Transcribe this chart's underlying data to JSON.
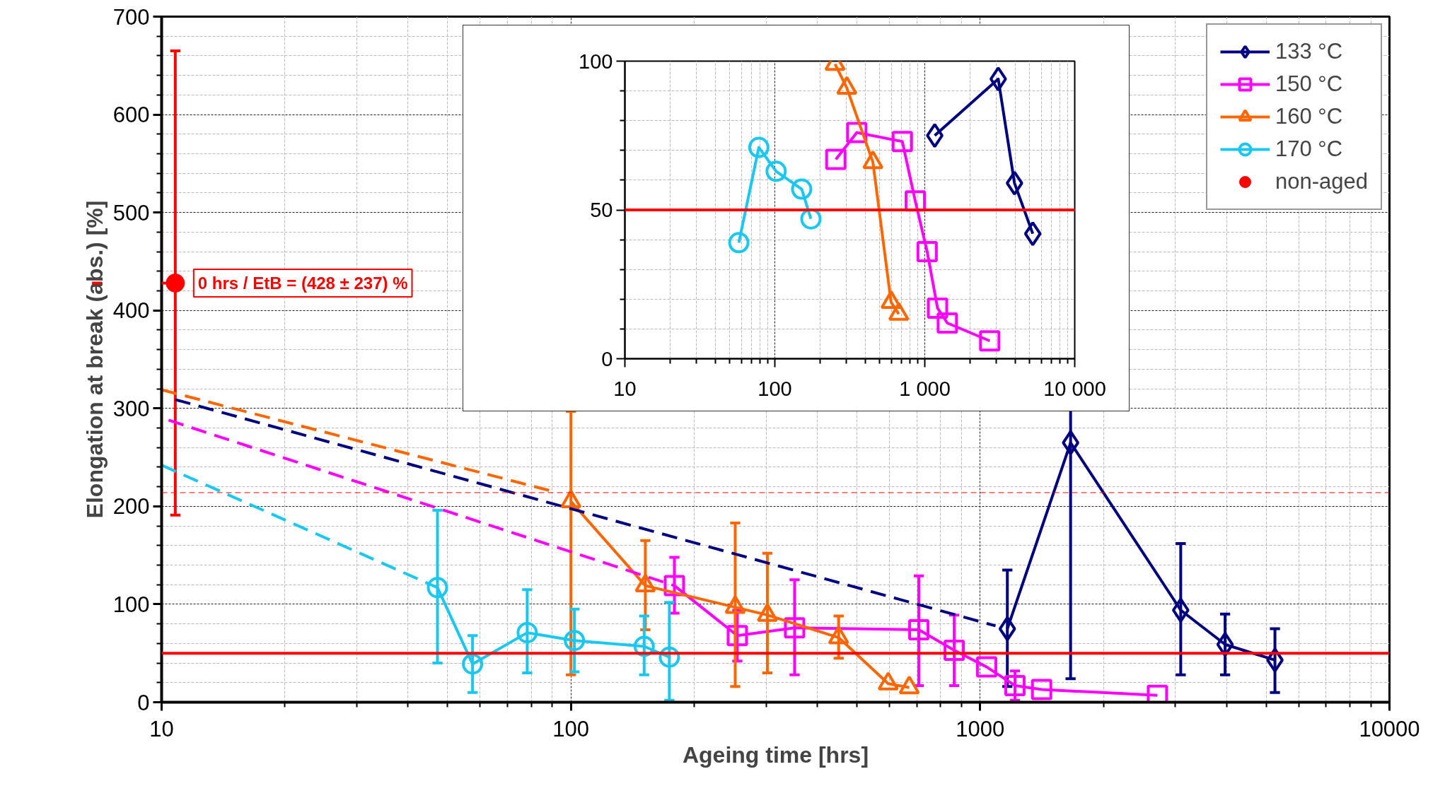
{
  "chart_data": [
    {
      "type": "line",
      "xlabel": "Ageing time [hrs]",
      "ylabel": "Elongation at break (abs.) [%]",
      "log": "x",
      "xlim": [
        10,
        10000
      ],
      "xticks": [
        10,
        100,
        1000,
        10000
      ],
      "ylim": [
        0,
        700
      ],
      "yticks": [
        0,
        100,
        200,
        300,
        400,
        500,
        600,
        700
      ],
      "grid": true,
      "legend": "top right",
      "series": [
        {
          "name": "133 °C",
          "color": "#000080",
          "marker": "diamond",
          "x": [
            1165,
            1663,
            3090,
            3966,
            5250
          ],
          "values": [
            75,
            265,
            94,
            59,
            43
          ],
          "errors": [
            [
              16,
              135
            ],
            [
              24,
              506
            ],
            [
              28,
              162
            ],
            [
              28,
              90
            ],
            [
              10,
              75
            ]
          ]
        },
        {
          "name": "150 °C",
          "color": "#ff00ff",
          "marker": "square",
          "x": [
            179,
            255,
            352,
            708,
            864,
            1037,
            1216,
            1413,
            2710
          ],
          "values": [
            119,
            68,
            76,
            74,
            53,
            36,
            17,
            13,
            7
          ],
          "errors": [
            [
              91,
              148
            ],
            [
              42,
              94
            ],
            [
              28,
              125
            ],
            [
              17,
              129
            ],
            [
              17,
              89
            ],
            null,
            15,
            null,
            null
          ]
        },
        {
          "name": "160 °C",
          "color": "#ff6600",
          "marker": "triangle",
          "x": [
            100,
            152,
            252,
            302,
            451,
            596,
            671
          ],
          "values": [
            205,
            119,
            97,
            89,
            66,
            19,
            15
          ],
          "errors": [
            [
              28,
              297
            ],
            [
              74,
              165
            ],
            [
              16,
              183
            ],
            [
              30,
              152
            ],
            [
              45,
              88
            ],
            null,
            null
          ]
        },
        {
          "name": "170 °C",
          "color": "#19c8f0",
          "marker": "circle",
          "x": [
            47.2,
            57.5,
            78.2,
            102,
            151,
            174
          ],
          "values": [
            117,
            39,
            71,
            63,
            57,
            46
          ],
          "errors": [
            [
              40,
              196
            ],
            [
              10,
              68
            ],
            [
              30,
              115
            ],
            [
              31,
              95
            ],
            [
              28,
              88
            ],
            [
              2,
              102
            ]
          ]
        },
        {
          "name": "non-aged",
          "type": "scatter",
          "color": "#ff0000",
          "marker": "circle",
          "x": [
            10.8
          ],
          "values": [
            428
          ],
          "errors": [
            237
          ]
        },
        {
          "color": "#000080",
          "line_style": "dashed",
          "marker": "none",
          "x": [
            10.8,
            1090
          ],
          "values": [
            309,
            78
          ]
        },
        {
          "color": "#ff00ff",
          "line_style": "dashed",
          "marker": "none",
          "x": [
            10.4,
            179
          ],
          "values": [
            288,
            119
          ]
        },
        {
          "color": "#ff6600",
          "line_style": "dashed",
          "marker": "none",
          "x": [
            10,
            89
          ],
          "values": [
            319,
            216
          ]
        },
        {
          "color": "#19c8f0",
          "line_style": "dashed",
          "marker": "none",
          "x": [
            10,
            47.2
          ],
          "values": [
            242,
            117
          ]
        }
      ],
      "ref_lines": [
        {
          "axis": "y",
          "value": 50,
          "color": "#ff0000",
          "line_style": "solid"
        },
        {
          "axis": "y",
          "value": 214,
          "color": "#ff0000",
          "line_style": "dashed"
        }
      ],
      "annotations": [
        {
          "text": "0 hrs / EtB = (428 ± 237) %",
          "x": 10.8,
          "y": 428
        }
      ]
    },
    {
      "type": "line",
      "log": "x",
      "xlim": [
        10,
        10000
      ],
      "xticks": [
        10,
        100,
        {
          "value": 1000,
          "label": "1 000"
        },
        {
          "value": 10000,
          "label": "10 000"
        }
      ],
      "ylim": [
        0,
        100
      ],
      "yticks": [
        0,
        50,
        100
      ],
      "grid": true,
      "series": [
        {
          "color": "#000080",
          "marker": "diamond",
          "x": [
            1165,
            3090,
            3966,
            5250
          ],
          "values": [
            75,
            94,
            59,
            42
          ]
        },
        {
          "color": "#ff00ff",
          "marker": "square",
          "x": [
            255,
            352,
            708,
            864,
            1037,
            1216,
            1413,
            2710
          ],
          "values": [
            67,
            76,
            73,
            53,
            36,
            17,
            12,
            6
          ]
        },
        {
          "color": "#ff6600",
          "marker": "triangle",
          "x": [
            252,
            302,
            451,
            596,
            671
          ],
          "values": [
            99,
            91,
            66,
            19,
            15
          ]
        },
        {
          "color": "#19c8f0",
          "marker": "circle",
          "x": [
            57.5,
            78.2,
            102,
            151,
            174
          ],
          "values": [
            39,
            71,
            63,
            57,
            47
          ]
        }
      ],
      "ref_lines": [
        {
          "axis": "y",
          "value": 50,
          "color": "#ff0000",
          "line_style": "solid"
        }
      ]
    }
  ]
}
